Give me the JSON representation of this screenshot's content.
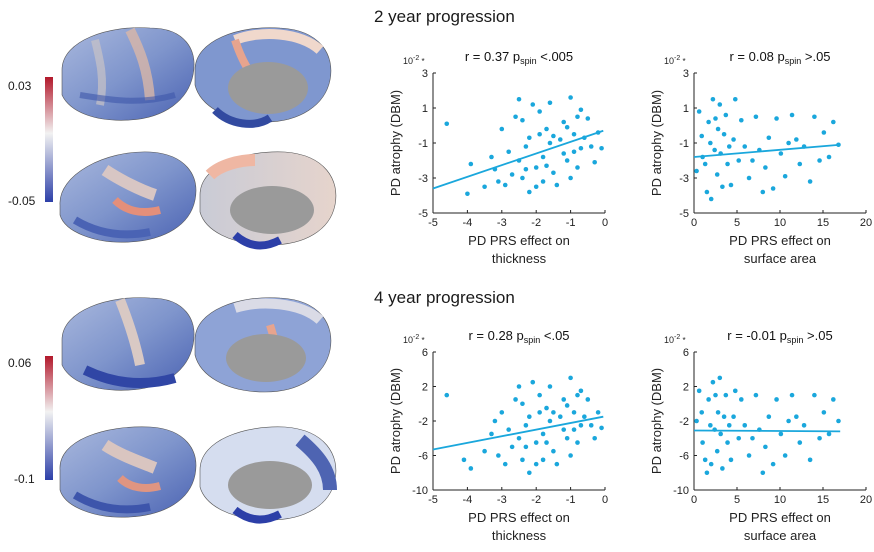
{
  "sections": [
    {
      "title": "2 year progression",
      "colorbar": {
        "max": "0.03",
        "min": "-0.05"
      }
    },
    {
      "title": "4 year progression",
      "colorbar": {
        "max": "0.06",
        "min": "-0.1"
      }
    }
  ],
  "colors": {
    "point": "#1aa7dc",
    "fit": "#1aa7dc",
    "cbar_high": "#b2182b",
    "cbar_mid": "#f2f2f2",
    "cbar_low": "#2c3fa8",
    "brain_gray": "#9a9a9a"
  },
  "chart_data": [
    {
      "type": "scatter",
      "title": "r = 0.37 p",
      "subscript": "spin",
      "sig": "<.005",
      "scale_note": "10",
      "scale_exp": "-2",
      "xlabel": [
        "PD PRS effect on",
        "thickness"
      ],
      "ylabel": "PD atrophy (DBM)",
      "xlim": [
        -5,
        0
      ],
      "ylim": [
        -5,
        3
      ],
      "xticks": [
        "-5",
        "-4",
        "-3",
        "-2",
        "-1",
        "0"
      ],
      "xtick_values": [
        -5,
        -4,
        -3,
        -2,
        -1,
        0
      ],
      "yticks": [
        "3",
        "1",
        "-1",
        "-3",
        "-5"
      ],
      "ytick_values": [
        3,
        1,
        -1,
        -3,
        -5
      ],
      "fit": [
        [
          -5,
          -3.6
        ],
        [
          -0.05,
          -0.3
        ]
      ],
      "x": [
        -4.6,
        -4.0,
        -3.9,
        -3.5,
        -3.3,
        -3.2,
        -3.1,
        -3.0,
        -2.9,
        -2.8,
        -2.7,
        -2.6,
        -2.5,
        -2.5,
        -2.4,
        -2.4,
        -2.3,
        -2.3,
        -2.2,
        -2.2,
        -2.1,
        -2.0,
        -2.0,
        -1.9,
        -1.9,
        -1.8,
        -1.8,
        -1.7,
        -1.7,
        -1.6,
        -1.6,
        -1.5,
        -1.5,
        -1.4,
        -1.3,
        -1.2,
        -1.2,
        -1.1,
        -1.1,
        -1.0,
        -1.0,
        -0.9,
        -0.9,
        -0.8,
        -0.8,
        -0.7,
        -0.7,
        -0.6,
        -0.5,
        -0.4,
        -0.3,
        -0.2,
        -0.1
      ],
      "y": [
        0.1,
        -3.9,
        -2.2,
        -3.5,
        -1.8,
        -2.5,
        -3.2,
        -0.2,
        -3.4,
        -1.5,
        -2.8,
        0.5,
        1.5,
        -2.0,
        -3.0,
        0.3,
        -2.5,
        -1.2,
        -3.8,
        -0.7,
        1.2,
        -2.4,
        -3.5,
        -0.5,
        0.8,
        -1.8,
        -3.2,
        -2.3,
        -0.2,
        -1.0,
        1.3,
        -2.7,
        -0.6,
        -3.4,
        -0.8,
        -1.6,
        0.2,
        -2.0,
        -0.1,
        -3.0,
        1.6,
        -1.5,
        -0.5,
        0.5,
        -2.4,
        0.9,
        -1.3,
        -0.7,
        0.4,
        -1.2,
        -2.1,
        -0.4,
        -1.3
      ]
    },
    {
      "type": "scatter",
      "title": "r = 0.08 p",
      "subscript": "spin",
      "sig": ">.05",
      "scale_note": "10",
      "scale_exp": "-2",
      "xlabel": [
        "PD PRS effect on",
        "surface area"
      ],
      "ylabel": "PD atrophy (DBM)",
      "xlim": [
        0,
        20
      ],
      "ylim": [
        -5,
        3
      ],
      "xticks": [
        "0",
        "5",
        "10",
        "15",
        "20"
      ],
      "xtick_values": [
        0,
        5,
        10,
        15,
        20
      ],
      "yticks": [
        "3",
        "1",
        "-1",
        "-3",
        "-5"
      ],
      "ytick_values": [
        3,
        1,
        -1,
        -3,
        -5
      ],
      "fit": [
        [
          0,
          -1.8
        ],
        [
          17,
          -1.1
        ]
      ],
      "x": [
        0.3,
        0.6,
        0.9,
        1.0,
        1.3,
        1.5,
        1.7,
        1.9,
        2.0,
        2.2,
        2.4,
        2.5,
        2.7,
        2.8,
        3.0,
        3.1,
        3.3,
        3.5,
        3.7,
        3.9,
        4.1,
        4.3,
        4.6,
        4.8,
        5.2,
        5.5,
        5.9,
        6.4,
        6.8,
        7.2,
        7.6,
        8.0,
        8.3,
        8.7,
        9.2,
        9.6,
        10.1,
        10.6,
        11.0,
        11.4,
        11.9,
        12.3,
        12.8,
        13.5,
        14.0,
        14.6,
        15.1,
        15.7,
        16.2,
        16.8
      ],
      "y": [
        -2.6,
        0.8,
        -0.6,
        -1.8,
        -2.2,
        -3.8,
        0.2,
        -1.0,
        -4.2,
        1.5,
        -1.4,
        0.4,
        -2.8,
        -0.2,
        1.2,
        -1.6,
        -3.5,
        -0.5,
        0.6,
        -2.2,
        -1.2,
        -3.4,
        -0.8,
        1.5,
        -2.0,
        0.3,
        -1.2,
        -3.0,
        -2.0,
        0.5,
        -1.4,
        -3.8,
        -2.4,
        -0.7,
        -3.6,
        0.4,
        -1.6,
        -2.9,
        -1.0,
        0.6,
        -0.8,
        -2.2,
        -1.2,
        -3.2,
        0.5,
        -2.0,
        -0.4,
        -1.8,
        0.2,
        -1.1
      ]
    },
    {
      "type": "scatter",
      "title": "r = 0.28 p",
      "subscript": "spin",
      "sig": "<.05",
      "scale_note": "10",
      "scale_exp": "-2",
      "xlabel": [
        "PD PRS effect on",
        "thickness"
      ],
      "ylabel": "PD atrophy (DBM)",
      "xlim": [
        -5,
        0
      ],
      "ylim": [
        -10,
        6
      ],
      "xticks": [
        "-5",
        "-4",
        "-3",
        "-2",
        "-1",
        "0"
      ],
      "xtick_values": [
        -5,
        -4,
        -3,
        -2,
        -1,
        0
      ],
      "yticks": [
        "6",
        "2",
        "-2",
        "-6",
        "-10"
      ],
      "ytick_values": [
        6,
        2,
        -2,
        -6,
        -10
      ],
      "fit": [
        [
          -5,
          -5.3
        ],
        [
          -0.05,
          -1.5
        ]
      ],
      "x": [
        -4.6,
        -4.1,
        -3.9,
        -3.5,
        -3.3,
        -3.2,
        -3.1,
        -3.0,
        -2.9,
        -2.8,
        -2.7,
        -2.6,
        -2.5,
        -2.5,
        -2.4,
        -2.4,
        -2.3,
        -2.3,
        -2.2,
        -2.2,
        -2.1,
        -2.0,
        -2.0,
        -1.9,
        -1.9,
        -1.8,
        -1.8,
        -1.7,
        -1.7,
        -1.6,
        -1.6,
        -1.5,
        -1.5,
        -1.4,
        -1.3,
        -1.2,
        -1.2,
        -1.1,
        -1.1,
        -1.0,
        -1.0,
        -0.9,
        -0.9,
        -0.8,
        -0.8,
        -0.7,
        -0.7,
        -0.6,
        -0.5,
        -0.4,
        -0.3,
        -0.2,
        -0.1
      ],
      "y": [
        1.0,
        -6.5,
        -7.5,
        -5.5,
        -3.5,
        -2.0,
        -6.0,
        -1.0,
        -7.0,
        -3.0,
        -5.0,
        0.5,
        2.0,
        -4.0,
        -6.5,
        0.0,
        -5.0,
        -2.5,
        -8.0,
        -1.5,
        2.5,
        -4.5,
        -7.0,
        -1.0,
        1.0,
        -3.5,
        -6.5,
        -4.5,
        -0.5,
        -2.0,
        2.0,
        -5.5,
        -1.0,
        -7.0,
        -1.5,
        -3.0,
        0.5,
        -4.0,
        -0.2,
        -6.0,
        3.0,
        -3.0,
        -1.0,
        1.0,
        -4.5,
        1.5,
        -2.5,
        -1.5,
        0.5,
        -2.5,
        -4.0,
        -1.0,
        -2.8
      ]
    },
    {
      "type": "scatter",
      "title": "r = -0.01 p",
      "subscript": "spin",
      "sig": ">.05",
      "scale_note": "10",
      "scale_exp": "-2",
      "xlabel": [
        "PD PRS effect on",
        "surface area"
      ],
      "ylabel": "PD atrophy (DBM)",
      "xlim": [
        0,
        20
      ],
      "ylim": [
        -10,
        6
      ],
      "xticks": [
        "0",
        "5",
        "10",
        "15",
        "20"
      ],
      "xtick_values": [
        0,
        5,
        10,
        15,
        20
      ],
      "yticks": [
        "6",
        "2",
        "-2",
        "-6",
        "-10"
      ],
      "ytick_values": [
        6,
        2,
        -2,
        -6,
        -10
      ],
      "fit": [
        [
          0,
          -3.1
        ],
        [
          17,
          -3.2
        ]
      ],
      "x": [
        0.3,
        0.6,
        0.9,
        1.0,
        1.3,
        1.5,
        1.7,
        1.9,
        2.0,
        2.2,
        2.4,
        2.5,
        2.7,
        2.8,
        3.0,
        3.1,
        3.3,
        3.5,
        3.7,
        3.9,
        4.1,
        4.3,
        4.6,
        4.8,
        5.2,
        5.5,
        5.9,
        6.4,
        6.8,
        7.2,
        7.6,
        8.0,
        8.3,
        8.7,
        9.2,
        9.6,
        10.1,
        10.6,
        11.0,
        11.4,
        11.9,
        12.3,
        12.8,
        13.5,
        14.0,
        14.6,
        15.1,
        15.7,
        16.2,
        16.8
      ],
      "y": [
        -2.0,
        1.5,
        -1.0,
        -4.5,
        -6.5,
        -8.0,
        0.5,
        -2.5,
        -7.0,
        2.5,
        -3.0,
        1.0,
        -5.5,
        -1.0,
        3.0,
        -3.5,
        -7.5,
        -1.5,
        1.0,
        -4.5,
        -2.5,
        -6.5,
        -1.5,
        1.5,
        -4.0,
        0.5,
        -2.5,
        -6.0,
        -4.0,
        1.0,
        -3.0,
        -8.0,
        -5.0,
        -1.5,
        -7.0,
        0.5,
        -3.5,
        -6.0,
        -2.0,
        1.0,
        -1.5,
        -4.5,
        -2.5,
        -6.5,
        1.0,
        -4.0,
        -1.0,
        -3.5,
        0.5,
        -2.0
      ]
    }
  ]
}
